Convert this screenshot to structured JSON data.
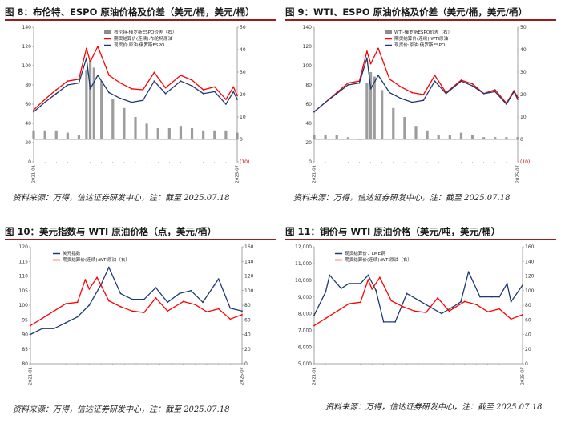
{
  "page": {
    "fig8_title": "图 8：布伦特、ESPO 原油价格及价差（美元/桶，美元/桶）",
    "fig9_title": "图 9：WTI、ESPO 原油价格及价差（美元/桶，美元/桶）",
    "fig10_title": "图 10：美元指数与 WTI 原油价格（点，美元/桶）",
    "fig11_title": "图 11：铜价与 WTI 原油价格（美元/吨，美元/桶）",
    "source_text": "资料来源：万得，信达证券研发中心，注：截至 2025.07.18"
  },
  "chart_data": [
    {
      "type": "line",
      "chart_id": "fig8",
      "title": "图 8：布伦特、ESPO 原油价格及价差（美元/桶，美元/桶）",
      "x_start": "2021-01",
      "x_end": "2025-07",
      "x_first_label": "2021-01",
      "x_last_label": "2025-07",
      "ylim_left": [
        0,
        140
      ],
      "yticks_left": [
        0,
        20,
        40,
        60,
        80,
        100,
        120,
        140
      ],
      "ylim_right": [
        -10,
        50
      ],
      "yticks_right": [
        "(10)",
        "0",
        "10",
        "20",
        "30",
        "40",
        "50"
      ],
      "grid": false,
      "legend_position": "top-center",
      "series": [
        {
          "name": "布伦特-俄罗斯ESPO价差（右）",
          "axis": "right",
          "kind": "bar",
          "color": "#8c8c8c",
          "x": [
            "2021-01",
            "2021-04",
            "2021-07",
            "2021-10",
            "2022-01",
            "2022-03",
            "2022-04",
            "2022-05",
            "2022-07",
            "2022-10",
            "2023-01",
            "2023-04",
            "2023-07",
            "2023-10",
            "2024-01",
            "2024-04",
            "2024-07",
            "2024-10",
            "2025-01",
            "2025-04",
            "2025-07"
          ],
          "values": [
            4,
            4,
            4,
            3,
            2,
            31,
            35,
            32,
            26,
            18,
            14,
            10,
            7,
            5,
            5,
            6,
            5,
            4,
            4,
            4,
            3
          ]
        },
        {
          "name": "期货结算价(连续):布伦特原油",
          "axis": "left",
          "kind": "line",
          "color": "#ff0000",
          "x": [
            "2021-01",
            "2021-04",
            "2021-07",
            "2021-10",
            "2022-01",
            "2022-03",
            "2022-04",
            "2022-06",
            "2022-09",
            "2022-12",
            "2023-03",
            "2023-06",
            "2023-09",
            "2023-12",
            "2024-04",
            "2024-07",
            "2024-10",
            "2025-01",
            "2025-04",
            "2025-06",
            "2025-07"
          ],
          "values": [
            54,
            65,
            75,
            84,
            86,
            118,
            104,
            120,
            90,
            82,
            76,
            75,
            93,
            77,
            90,
            85,
            75,
            78,
            65,
            78,
            69
          ]
        },
        {
          "name": "现货价:原油:俄罗斯ESPO",
          "axis": "left",
          "kind": "line",
          "color": "#1f3a73",
          "x": [
            "2021-01",
            "2021-04",
            "2021-07",
            "2021-10",
            "2022-01",
            "2022-03",
            "2022-04",
            "2022-06",
            "2022-09",
            "2022-12",
            "2023-03",
            "2023-06",
            "2023-09",
            "2023-12",
            "2024-04",
            "2024-07",
            "2024-10",
            "2025-01",
            "2025-04",
            "2025-06",
            "2025-07"
          ],
          "values": [
            52,
            62,
            71,
            80,
            82,
            108,
            76,
            90,
            72,
            66,
            62,
            64,
            84,
            71,
            84,
            79,
            71,
            73,
            60,
            73,
            65
          ]
        }
      ]
    },
    {
      "type": "line",
      "chart_id": "fig9",
      "title": "图 9：WTI、ESPO 原油价格及价差（美元/桶，美元/桶）",
      "x_start": "2021-01",
      "x_end": "2025-07",
      "x_first_label": "2021-01",
      "x_last_label": "2025-07",
      "ylim_left": [
        0,
        140
      ],
      "yticks_left": [
        0,
        20,
        40,
        60,
        80,
        100,
        120,
        140
      ],
      "ylim_right": [
        -10,
        50
      ],
      "yticks_right": [
        "(10)",
        "0",
        "10",
        "20",
        "30",
        "40",
        "50"
      ],
      "grid": false,
      "legend_position": "top-center",
      "series": [
        {
          "name": "WTI-俄罗斯ESPO价差（右）",
          "axis": "right",
          "kind": "bar",
          "color": "#8c8c8c",
          "x": [
            "2021-01",
            "2021-04",
            "2021-07",
            "2021-10",
            "2022-01",
            "2022-03",
            "2022-04",
            "2022-05",
            "2022-07",
            "2022-10",
            "2023-01",
            "2023-04",
            "2023-07",
            "2023-10",
            "2024-01",
            "2024-04",
            "2024-07",
            "2024-10",
            "2025-01",
            "2025-04",
            "2025-07"
          ],
          "values": [
            2,
            2,
            2,
            1,
            0,
            25,
            30,
            28,
            22,
            14,
            10,
            6,
            4,
            2,
            2,
            3,
            2,
            1,
            1,
            1,
            1
          ]
        },
        {
          "name": "期货结算价(连续):WTI原油",
          "axis": "left",
          "kind": "line",
          "color": "#ff0000",
          "x": [
            "2021-01",
            "2021-04",
            "2021-07",
            "2021-10",
            "2022-01",
            "2022-03",
            "2022-04",
            "2022-06",
            "2022-09",
            "2022-12",
            "2023-03",
            "2023-06",
            "2023-09",
            "2023-12",
            "2024-04",
            "2024-07",
            "2024-10",
            "2025-01",
            "2025-04",
            "2025-06",
            "2025-07"
          ],
          "values": [
            52,
            62,
            72,
            82,
            84,
            115,
            102,
            118,
            86,
            78,
            72,
            70,
            90,
            72,
            85,
            81,
            71,
            75,
            61,
            74,
            67
          ]
        },
        {
          "name": "现货价:原油:俄罗斯ESPO",
          "axis": "left",
          "kind": "line",
          "color": "#1f3a73",
          "x": [
            "2021-01",
            "2021-04",
            "2021-07",
            "2021-10",
            "2022-01",
            "2022-03",
            "2022-04",
            "2022-06",
            "2022-09",
            "2022-12",
            "2023-03",
            "2023-06",
            "2023-09",
            "2023-12",
            "2024-04",
            "2024-07",
            "2024-10",
            "2025-01",
            "2025-04",
            "2025-06",
            "2025-07"
          ],
          "values": [
            52,
            62,
            71,
            80,
            82,
            108,
            76,
            90,
            72,
            66,
            62,
            64,
            84,
            71,
            84,
            79,
            71,
            73,
            60,
            73,
            65
          ]
        }
      ]
    },
    {
      "type": "line",
      "chart_id": "fig10",
      "title": "图 10：美元指数与 WTI 原油价格（点，美元/桶）",
      "x_start": "2021-01",
      "x_end": "2025-07",
      "x_first_label": "2021-01",
      "x_last_label": "2025-07",
      "ylim_left": [
        80,
        120
      ],
      "yticks_left": [
        80,
        85,
        90,
        95,
        100,
        105,
        110,
        115,
        120
      ],
      "ylim_right": [
        0,
        160
      ],
      "yticks_right": [
        0,
        20,
        40,
        60,
        80,
        100,
        120,
        140,
        160
      ],
      "grid": false,
      "legend_position": "top-center",
      "series": [
        {
          "name": "美元指数",
          "axis": "left",
          "kind": "line",
          "color": "#1f3a73",
          "x": [
            "2021-01",
            "2021-04",
            "2021-07",
            "2021-10",
            "2022-01",
            "2022-04",
            "2022-07",
            "2022-09",
            "2022-12",
            "2023-03",
            "2023-06",
            "2023-09",
            "2023-12",
            "2024-03",
            "2024-06",
            "2024-09",
            "2024-12",
            "2025-01",
            "2025-04",
            "2025-07"
          ],
          "values": [
            90,
            92,
            92,
            94,
            96,
            100,
            107,
            113,
            104,
            102,
            102,
            106,
            101,
            104,
            105,
            101,
            107,
            109,
            99,
            98
          ]
        },
        {
          "name": "期货结算价(连续):WTI原油（右）",
          "axis": "right",
          "kind": "line",
          "color": "#ff0000",
          "x": [
            "2021-01",
            "2021-04",
            "2021-07",
            "2021-10",
            "2022-01",
            "2022-03",
            "2022-04",
            "2022-06",
            "2022-09",
            "2022-12",
            "2023-03",
            "2023-06",
            "2023-09",
            "2023-12",
            "2024-04",
            "2024-07",
            "2024-10",
            "2025-01",
            "2025-04",
            "2025-07"
          ],
          "values": [
            52,
            62,
            72,
            82,
            84,
            115,
            102,
            118,
            86,
            78,
            72,
            70,
            90,
            72,
            85,
            81,
            71,
            75,
            61,
            67
          ]
        }
      ]
    },
    {
      "type": "line",
      "chart_id": "fig11",
      "title": "图 11：铜价与 WTI 原油价格（美元/吨，美元/桶）",
      "x_start": "2021-01",
      "x_end": "2025-07",
      "x_first_label": "2021-01",
      "x_last_label": "2025-07",
      "ylim_left": [
        5000,
        12000
      ],
      "yticks_left": [
        "5,000",
        "6,000",
        "7,000",
        "8,000",
        "9,000",
        "10,000",
        "11,000",
        "12,000"
      ],
      "ylim_right": [
        0,
        160
      ],
      "yticks_right": [
        0,
        20,
        40,
        60,
        80,
        100,
        120,
        140,
        160
      ],
      "grid": false,
      "legend_position": "top-center",
      "series": [
        {
          "name": "现货结算价：LME铜",
          "axis": "left",
          "kind": "line",
          "color": "#1f3a73",
          "x": [
            "2021-01",
            "2021-04",
            "2021-05",
            "2021-08",
            "2021-10",
            "2022-01",
            "2022-03",
            "2022-05",
            "2022-07",
            "2022-10",
            "2023-01",
            "2023-04",
            "2023-07",
            "2023-10",
            "2024-01",
            "2024-03",
            "2024-05",
            "2024-08",
            "2024-11",
            "2025-01",
            "2025-03",
            "2025-04",
            "2025-07"
          ],
          "values": [
            7900,
            9300,
            10300,
            9500,
            9800,
            9800,
            10300,
            9400,
            7500,
            7500,
            9200,
            8800,
            8400,
            8000,
            8400,
            8700,
            10500,
            9000,
            9000,
            9000,
            9800,
            8700,
            9700
          ]
        },
        {
          "name": "期货结算价(连续):WTI原油（右）",
          "axis": "right",
          "kind": "line",
          "color": "#ff0000",
          "x": [
            "2021-01",
            "2021-04",
            "2021-07",
            "2021-10",
            "2022-01",
            "2022-03",
            "2022-04",
            "2022-06",
            "2022-09",
            "2022-12",
            "2023-03",
            "2023-06",
            "2023-09",
            "2023-12",
            "2024-04",
            "2024-07",
            "2024-10",
            "2025-01",
            "2025-04",
            "2025-07"
          ],
          "values": [
            52,
            62,
            72,
            82,
            84,
            115,
            102,
            118,
            86,
            78,
            72,
            70,
            90,
            72,
            85,
            81,
            71,
            75,
            61,
            67
          ]
        }
      ]
    }
  ]
}
